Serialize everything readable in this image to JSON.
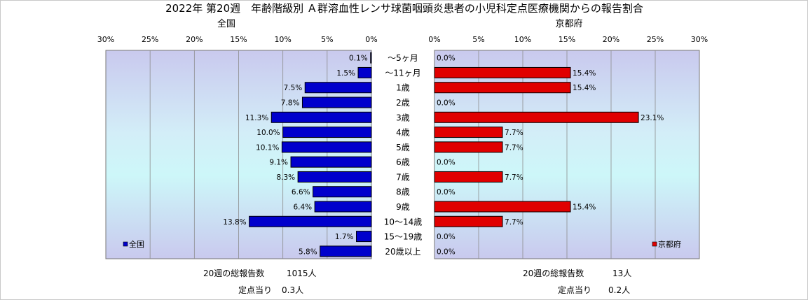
{
  "chart_data": {
    "type": "bar",
    "title": "2022年 第20週　年齢階級別 Ａ群溶血性レンサ球菌咽頭炎患者の小児科定点医療機関からの報告割合",
    "categories": [
      "～5ヶ月",
      "～11ヶ月",
      "1歳",
      "2歳",
      "3歳",
      "4歳",
      "5歳",
      "6歳",
      "7歳",
      "8歳",
      "9歳",
      "10～14歳",
      "15～19歳",
      "20歳以上"
    ],
    "xlim": [
      0,
      30
    ],
    "xticks": [
      "0%",
      "5%",
      "10%",
      "15%",
      "20%",
      "25%",
      "30%"
    ],
    "grid": true,
    "panels": [
      {
        "subtitle": "全国",
        "legend": "全国",
        "legend_position": "bottom-left",
        "color": "#0000cc",
        "values": [
          0.1,
          1.5,
          7.5,
          7.8,
          11.3,
          10.0,
          10.1,
          9.1,
          8.3,
          6.6,
          6.4,
          13.8,
          1.7,
          5.8
        ],
        "labels": [
          "0.1%",
          "1.5%",
          "7.5%",
          "7.8%",
          "11.3%",
          "10.0%",
          "10.1%",
          "9.1%",
          "8.3%",
          "6.6%",
          "6.4%",
          "13.8%",
          "1.7%",
          "5.8%"
        ],
        "total_label": "20週の総報告数",
        "total_value": "1015人",
        "per_site_label": "定点当り",
        "per_site_value": "0.3人"
      },
      {
        "subtitle": "京都府",
        "legend": "京都府",
        "legend_position": "bottom-right",
        "color": "#e00000",
        "values": [
          0.0,
          15.4,
          15.4,
          0.0,
          23.1,
          7.7,
          7.7,
          0.0,
          7.7,
          0.0,
          15.4,
          7.7,
          0.0,
          0.0
        ],
        "labels": [
          "0.0%",
          "15.4%",
          "15.4%",
          "0.0%",
          "23.1%",
          "7.7%",
          "7.7%",
          "0.0%",
          "7.7%",
          "0.0%",
          "15.4%",
          "7.7%",
          "0.0%",
          "0.0%"
        ],
        "total_label": "20週の総報告数",
        "total_value": "13人",
        "per_site_label": "定点当り",
        "per_site_value": "0.2人"
      }
    ]
  }
}
